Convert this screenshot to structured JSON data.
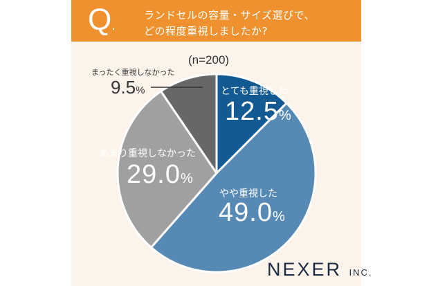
{
  "header": {
    "q_mark": "Q",
    "q_dot": ".",
    "title_lines": [
      "ランドセルの容量・サイズ選びで、",
      "どの程度重視しましたか?"
    ]
  },
  "sample_size": "(n=200)",
  "brand": {
    "name": "NEXER",
    "suffix": "INC."
  },
  "colors": {
    "header": "#EF912E",
    "background": "#FCF4EA"
  },
  "chart_data": {
    "type": "pie",
    "start": "top, clockwise",
    "slices": [
      {
        "label": "とても重視した",
        "value": 12.5,
        "display": "12.5",
        "color": "#145A92"
      },
      {
        "label": "やや重視した",
        "value": 49.0,
        "display": "49.0",
        "color": "#568AB5"
      },
      {
        "label": "あまり重視しなかった",
        "value": 29.0,
        "display": "29.0",
        "color": "#A0A0A0"
      },
      {
        "label": "まったく重視しなかった",
        "value": 9.5,
        "display": "9.5",
        "color": "#676767"
      }
    ],
    "unit": "%"
  }
}
